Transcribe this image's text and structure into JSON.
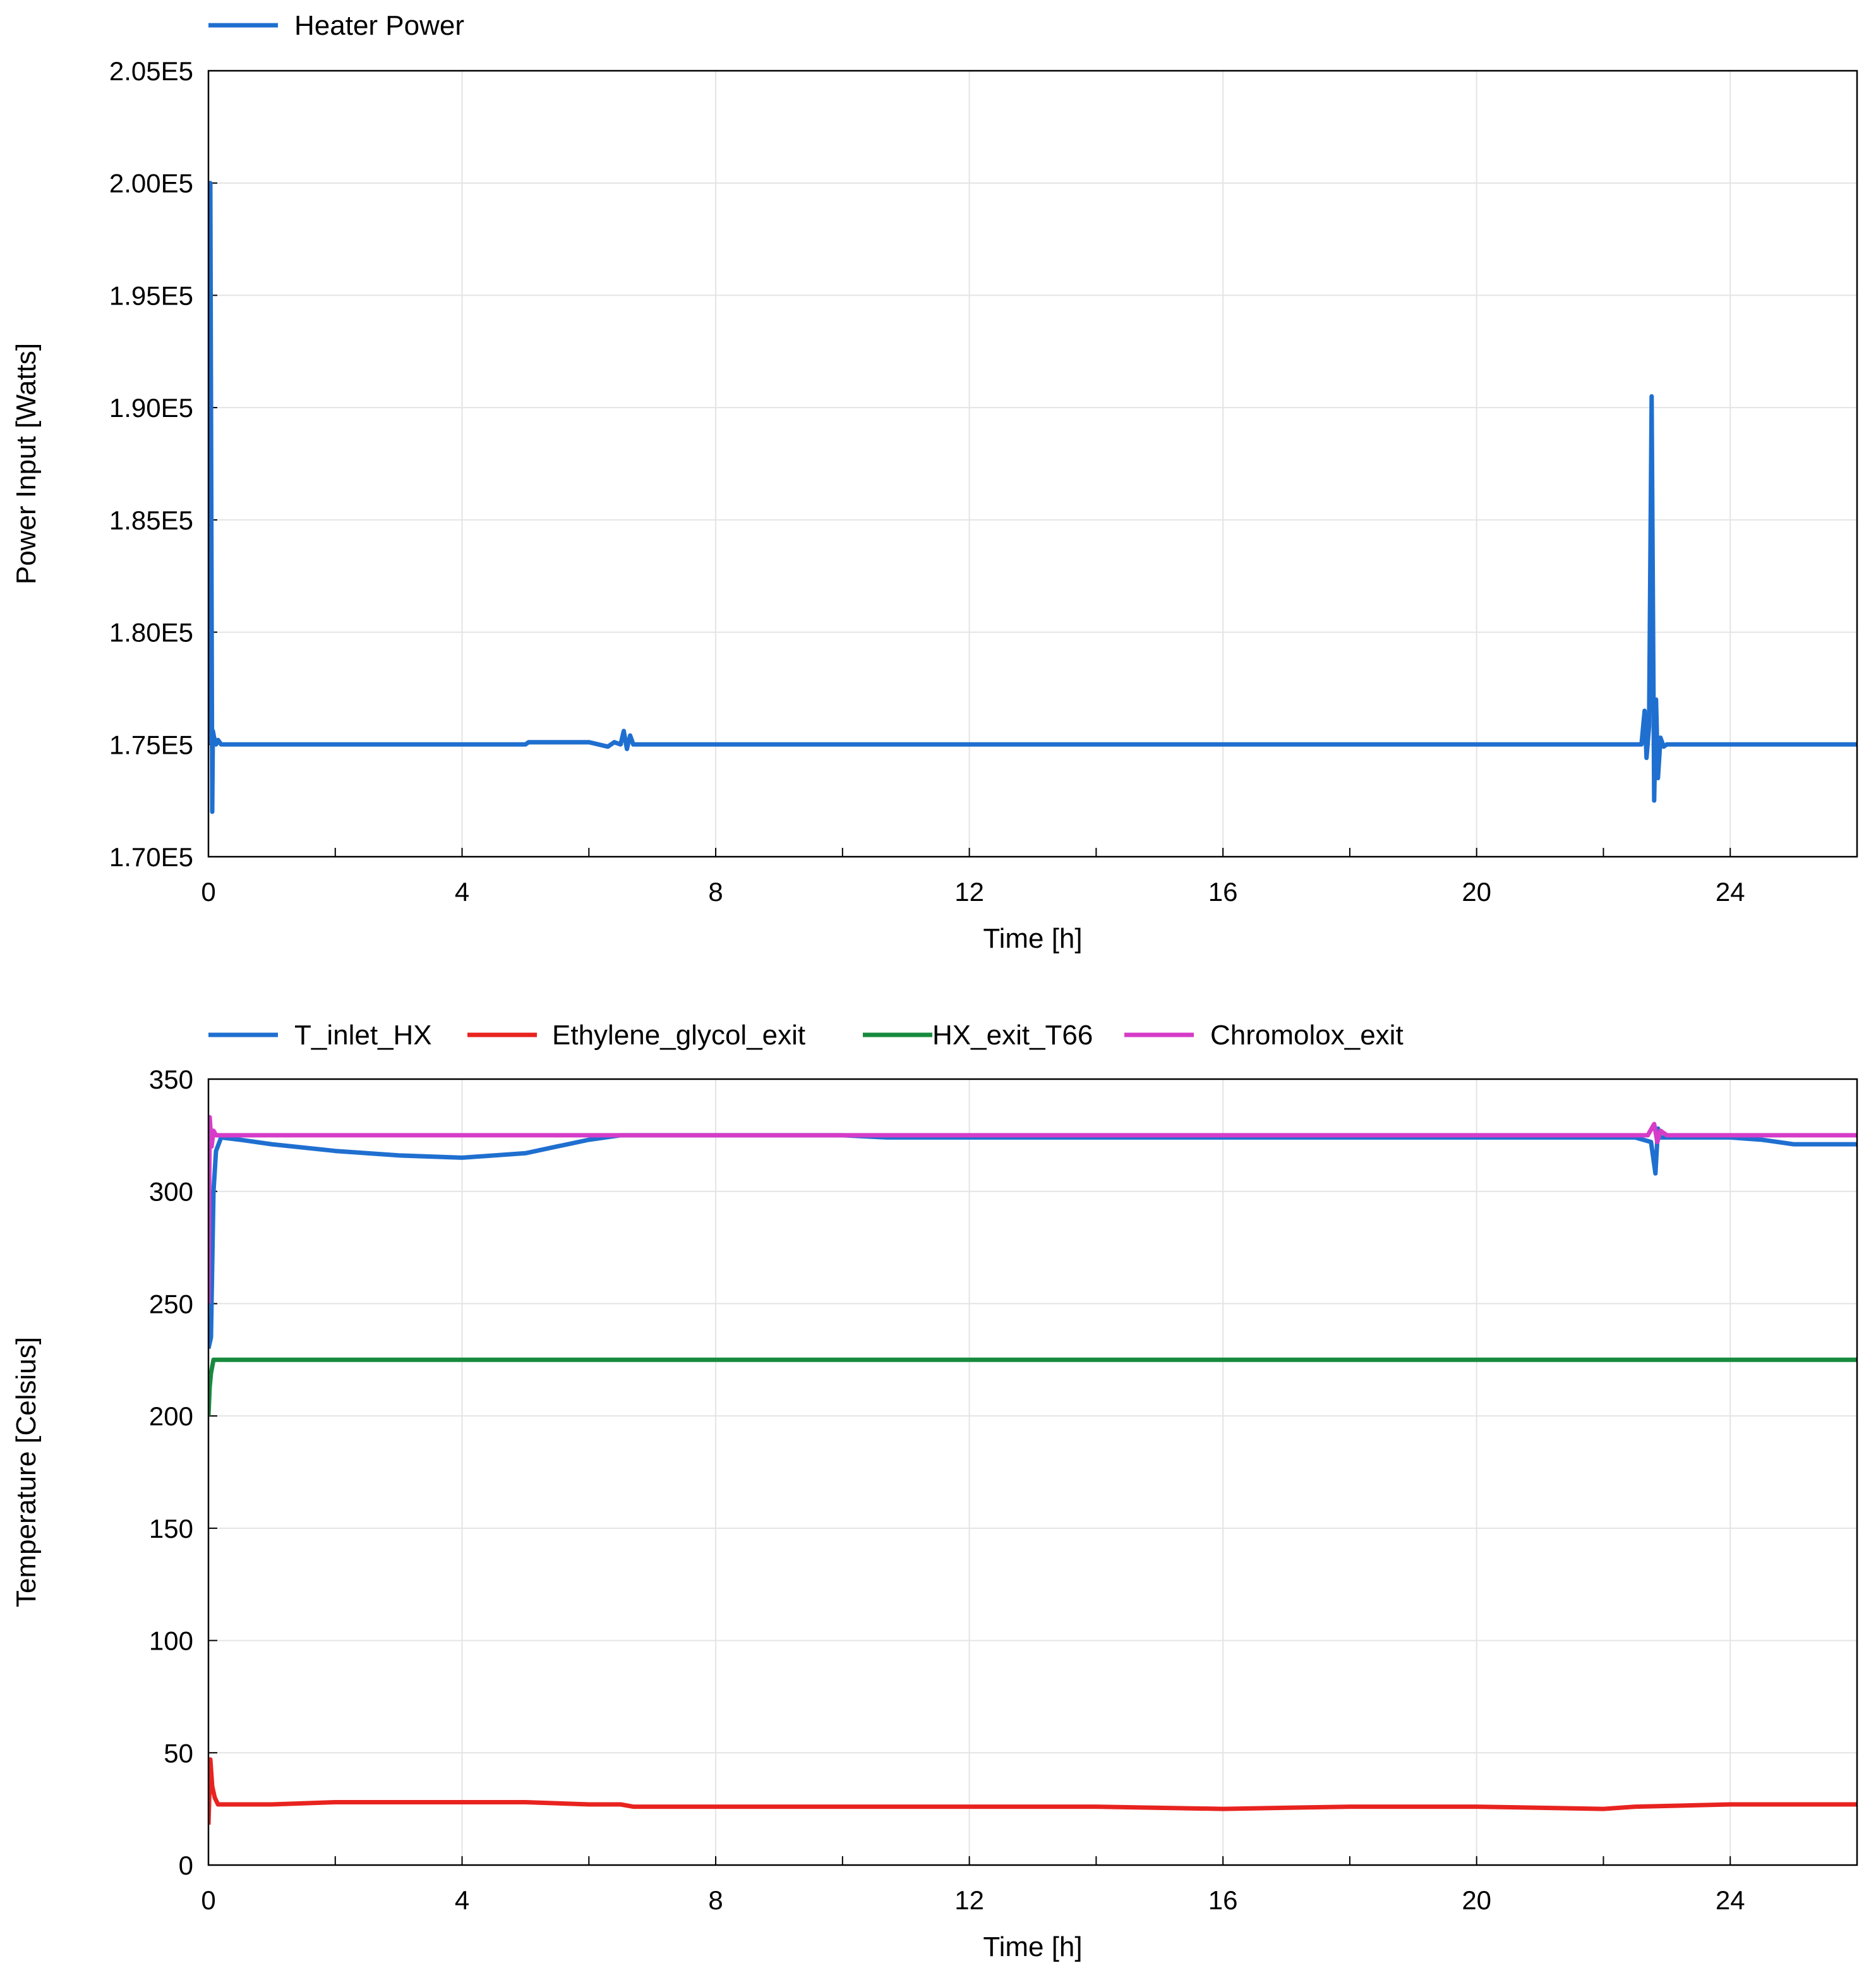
{
  "chart_data": [
    {
      "type": "line",
      "title": "",
      "xlabel": "Time [h]",
      "ylabel": "Power Input [Watts]",
      "xlim": [
        0,
        26
      ],
      "ylim": [
        170000,
        205000
      ],
      "x_ticks": [
        0,
        4,
        8,
        12,
        16,
        20,
        24
      ],
      "x_tick_labels": [
        "0",
        "4",
        "8",
        "12",
        "16",
        "20",
        "24"
      ],
      "y_ticks": [
        170000,
        175000,
        180000,
        185000,
        190000,
        195000,
        200000,
        205000
      ],
      "y_tick_labels": [
        "1.70E5",
        "1.75E5",
        "1.80E5",
        "1.85E5",
        "1.90E5",
        "1.95E5",
        "2.00E5",
        "2.05E5"
      ],
      "grid": true,
      "legend_position": "top-left",
      "series": [
        {
          "name": "Heater Power",
          "color": "#1f6fd0",
          "x": [
            0,
            0.03,
            0.06,
            0.07,
            0.09,
            0.12,
            0.15,
            0.2,
            1.0,
            2.0,
            3.0,
            4.0,
            5.0,
            5.05,
            6.0,
            6.3,
            6.4,
            6.5,
            6.55,
            6.6,
            6.65,
            6.7,
            7.0,
            8.0,
            10.0,
            12.0,
            14.0,
            16.0,
            18.0,
            20.0,
            22.0,
            22.6,
            22.65,
            22.68,
            22.72,
            22.76,
            22.8,
            22.83,
            22.86,
            22.9,
            22.95,
            23.0,
            24.0,
            25.0,
            26.0
          ],
          "values": [
            175000,
            200000,
            172000,
            175600,
            175300,
            175000,
            175200,
            175000,
            175000,
            175000,
            175000,
            175000,
            175000,
            175100,
            175100,
            174900,
            175100,
            175000,
            175600,
            174800,
            175400,
            175000,
            175000,
            175000,
            175000,
            175000,
            175000,
            175000,
            175000,
            175000,
            175000,
            175000,
            176500,
            174400,
            175800,
            190500,
            172500,
            177000,
            173500,
            175300,
            174900,
            175000,
            175000,
            175000,
            175000
          ]
        }
      ]
    },
    {
      "type": "line",
      "title": "",
      "xlabel": "Time [h]",
      "ylabel": "Temperature [Celsius]",
      "xlim": [
        0,
        26
      ],
      "ylim": [
        0,
        350
      ],
      "x_ticks": [
        0,
        4,
        8,
        12,
        16,
        20,
        24
      ],
      "x_tick_labels": [
        "0",
        "4",
        "8",
        "12",
        "16",
        "20",
        "24"
      ],
      "y_ticks": [
        0,
        50,
        100,
        150,
        200,
        250,
        300,
        350
      ],
      "y_tick_labels": [
        "0",
        "50",
        "100",
        "150",
        "200",
        "250",
        "300",
        "350"
      ],
      "grid": true,
      "legend_position": "top-left",
      "series": [
        {
          "name": "T_inlet_HX",
          "color": "#1f6fd0",
          "x": [
            0,
            0.04,
            0.08,
            0.12,
            0.2,
            0.5,
            1,
            2,
            3,
            4,
            5,
            5.5,
            6,
            6.5,
            7,
            8,
            10,
            10.7,
            12,
            14,
            16,
            18,
            20,
            22.5,
            22.75,
            22.82,
            22.86,
            22.9,
            23,
            24,
            24.5,
            25,
            26
          ],
          "values": [
            230,
            235,
            300,
            318,
            324,
            323,
            321,
            318,
            316,
            315,
            317,
            320,
            323,
            325,
            325,
            325,
            325,
            324,
            324,
            324,
            324,
            324,
            324,
            324,
            322,
            308,
            328,
            324,
            324,
            324,
            323,
            321,
            321
          ]
        },
        {
          "name": "Ethylene_glycol_exit",
          "color": "#e8231f",
          "x": [
            0,
            0.03,
            0.06,
            0.1,
            0.15,
            0.3,
            1,
            2,
            3,
            4,
            5,
            6,
            6.5,
            6.7,
            7,
            8,
            10,
            12,
            14,
            16,
            18,
            20,
            22,
            22.5,
            24,
            26
          ],
          "values": [
            18,
            47,
            35,
            30,
            27,
            27,
            27,
            28,
            28,
            28,
            28,
            27,
            27,
            26,
            26,
            26,
            26,
            26,
            26,
            25,
            26,
            26,
            25,
            26,
            27,
            27
          ]
        },
        {
          "name": "HX_exit_T66",
          "color": "#178a3e",
          "x": [
            0,
            0.02,
            0.04,
            0.06,
            0.08,
            0.12,
            0.3,
            2,
            6,
            10,
            14,
            18,
            22,
            26
          ],
          "values": [
            200,
            213,
            219,
            222,
            225,
            225,
            225,
            225,
            225,
            225,
            225,
            225,
            225,
            225
          ]
        },
        {
          "name": "Chromolox_exit",
          "color": "#d63cc8",
          "x": [
            0,
            0.02,
            0.05,
            0.08,
            0.12,
            0.3,
            1,
            4,
            8,
            12,
            16,
            20,
            22.7,
            22.8,
            22.85,
            22.9,
            23,
            24,
            26
          ],
          "values": [
            250,
            333,
            320,
            327,
            325,
            325,
            325,
            325,
            325,
            325,
            325,
            325,
            325,
            330,
            322,
            327,
            325,
            325,
            325
          ]
        }
      ]
    }
  ]
}
